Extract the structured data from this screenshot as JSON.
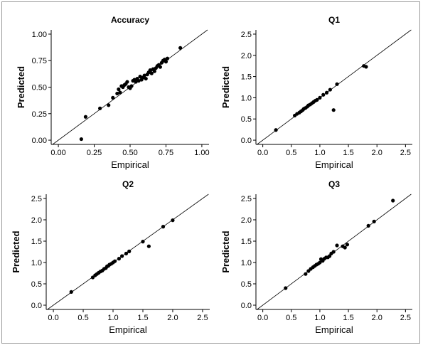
{
  "chart_data": [
    {
      "type": "scatter",
      "title": "Accuracy",
      "xlabel": "Empirical",
      "ylabel": "Predicted",
      "xlim": [
        -0.05,
        1.05
      ],
      "ylim": [
        -0.04,
        1.04
      ],
      "xticks": [
        "0.00",
        "0.25",
        "0.50",
        "0.75",
        "1.00"
      ],
      "yticks": [
        "0.00",
        "0.25",
        "0.50",
        "0.75",
        "1.00"
      ],
      "reference_line": "y = x",
      "grid": false,
      "points": [
        [
          0.16,
          0.01
        ],
        [
          0.19,
          0.22
        ],
        [
          0.29,
          0.3
        ],
        [
          0.35,
          0.33
        ],
        [
          0.38,
          0.4
        ],
        [
          0.41,
          0.44
        ],
        [
          0.42,
          0.48
        ],
        [
          0.43,
          0.45
        ],
        [
          0.44,
          0.51
        ],
        [
          0.45,
          0.5
        ],
        [
          0.46,
          0.52
        ],
        [
          0.47,
          0.53
        ],
        [
          0.48,
          0.55
        ],
        [
          0.49,
          0.5
        ],
        [
          0.5,
          0.49
        ],
        [
          0.51,
          0.51
        ],
        [
          0.52,
          0.56
        ],
        [
          0.53,
          0.57
        ],
        [
          0.54,
          0.55
        ],
        [
          0.55,
          0.58
        ],
        [
          0.56,
          0.56
        ],
        [
          0.57,
          0.6
        ],
        [
          0.58,
          0.57
        ],
        [
          0.59,
          0.59
        ],
        [
          0.6,
          0.61
        ],
        [
          0.61,
          0.58
        ],
        [
          0.62,
          0.62
        ],
        [
          0.63,
          0.64
        ],
        [
          0.64,
          0.66
        ],
        [
          0.65,
          0.63
        ],
        [
          0.66,
          0.67
        ],
        [
          0.67,
          0.65
        ],
        [
          0.68,
          0.68
        ],
        [
          0.69,
          0.7
        ],
        [
          0.7,
          0.71
        ],
        [
          0.71,
          0.69
        ],
        [
          0.72,
          0.73
        ],
        [
          0.73,
          0.75
        ],
        [
          0.74,
          0.76
        ],
        [
          0.75,
          0.74
        ],
        [
          0.76,
          0.77
        ],
        [
          0.85,
          0.87
        ]
      ]
    },
    {
      "type": "scatter",
      "title": "Q1",
      "xlabel": "Empirical",
      "ylabel": "Predicted",
      "xlim": [
        -0.12,
        2.62
      ],
      "ylim": [
        -0.1,
        2.6
      ],
      "xticks": [
        "0.0",
        "0.5",
        "1.0",
        "1.5",
        "2.0",
        "2.5"
      ],
      "yticks": [
        "0.0",
        "0.5",
        "1.0",
        "1.5",
        "2.0",
        "2.5"
      ],
      "reference_line": "y = x",
      "grid": false,
      "points": [
        [
          0.23,
          0.24
        ],
        [
          0.56,
          0.58
        ],
        [
          0.6,
          0.62
        ],
        [
          0.64,
          0.65
        ],
        [
          0.67,
          0.68
        ],
        [
          0.7,
          0.71
        ],
        [
          0.72,
          0.74
        ],
        [
          0.75,
          0.76
        ],
        [
          0.78,
          0.79
        ],
        [
          0.8,
          0.82
        ],
        [
          0.83,
          0.84
        ],
        [
          0.86,
          0.87
        ],
        [
          0.89,
          0.9
        ],
        [
          0.92,
          0.93
        ],
        [
          0.95,
          0.95
        ],
        [
          1.0,
          1.0
        ],
        [
          1.06,
          1.07
        ],
        [
          1.12,
          1.12
        ],
        [
          1.18,
          1.19
        ],
        [
          1.24,
          0.71
        ],
        [
          1.3,
          1.32
        ],
        [
          1.77,
          1.75
        ],
        [
          1.81,
          1.73
        ]
      ]
    },
    {
      "type": "scatter",
      "title": "Q2",
      "xlabel": "Empirical",
      "ylabel": "Predicted",
      "xlim": [
        -0.12,
        2.62
      ],
      "ylim": [
        -0.1,
        2.6
      ],
      "xticks": [
        "0.0",
        "0.5",
        "1.0",
        "1.5",
        "2.0",
        "2.5"
      ],
      "yticks": [
        "0.0",
        "0.5",
        "1.0",
        "1.5",
        "2.0",
        "2.5"
      ],
      "reference_line": "y = x",
      "grid": false,
      "points": [
        [
          0.3,
          0.31
        ],
        [
          0.66,
          0.65
        ],
        [
          0.7,
          0.7
        ],
        [
          0.73,
          0.73
        ],
        [
          0.76,
          0.76
        ],
        [
          0.79,
          0.79
        ],
        [
          0.82,
          0.81
        ],
        [
          0.85,
          0.85
        ],
        [
          0.88,
          0.87
        ],
        [
          0.9,
          0.91
        ],
        [
          0.92,
          0.92
        ],
        [
          0.94,
          0.95
        ],
        [
          0.97,
          0.97
        ],
        [
          1.0,
          1.0
        ],
        [
          1.03,
          1.03
        ],
        [
          1.1,
          1.09
        ],
        [
          1.15,
          1.15
        ],
        [
          1.22,
          1.21
        ],
        [
          1.27,
          1.26
        ],
        [
          1.5,
          1.49
        ],
        [
          1.6,
          1.38
        ],
        [
          1.84,
          1.84
        ],
        [
          2.0,
          1.99
        ]
      ]
    },
    {
      "type": "scatter",
      "title": "Q3",
      "xlabel": "Empirical",
      "ylabel": "Predicted",
      "xlim": [
        -0.12,
        2.62
      ],
      "ylim": [
        -0.1,
        2.6
      ],
      "xticks": [
        "0.0",
        "0.5",
        "1.0",
        "1.5",
        "2.0",
        "2.5"
      ],
      "yticks": [
        "0.0",
        "0.5",
        "1.0",
        "1.5",
        "2.0",
        "2.5"
      ],
      "reference_line": "y = x",
      "grid": false,
      "points": [
        [
          0.4,
          0.4
        ],
        [
          0.75,
          0.73
        ],
        [
          0.8,
          0.8
        ],
        [
          0.84,
          0.85
        ],
        [
          0.88,
          0.89
        ],
        [
          0.91,
          0.92
        ],
        [
          0.94,
          0.95
        ],
        [
          0.97,
          0.97
        ],
        [
          1.0,
          1.0
        ],
        [
          1.02,
          1.08
        ],
        [
          1.05,
          1.04
        ],
        [
          1.08,
          1.09
        ],
        [
          1.11,
          1.12
        ],
        [
          1.14,
          1.12
        ],
        [
          1.17,
          1.15
        ],
        [
          1.2,
          1.21
        ],
        [
          1.24,
          1.25
        ],
        [
          1.3,
          1.4
        ],
        [
          1.4,
          1.38
        ],
        [
          1.44,
          1.35
        ],
        [
          1.48,
          1.42
        ],
        [
          1.85,
          1.86
        ],
        [
          1.95,
          1.96
        ],
        [
          2.28,
          2.45
        ]
      ]
    }
  ]
}
